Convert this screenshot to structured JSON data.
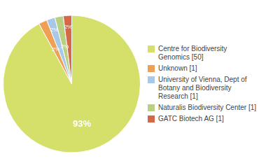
{
  "chart_data": {
    "type": "pie",
    "categories": [
      "Centre for Biodiversity\nGenomics [50]",
      "Unknown [1]",
      "University of Vienna, Dept of\nBotany and Biodiversity\nResearch [1]",
      "Naturalis Biodiversity Center [1]",
      "GATC Biotech AG [1]"
    ],
    "values": [
      93,
      2,
      2,
      2,
      2
    ],
    "value_labels": [
      "93%",
      "2%",
      "2%",
      "2%",
      "2%"
    ],
    "colors": [
      "#d4e06a",
      "#f0a055",
      "#a8c8e8",
      "#b8d080",
      "#d46848"
    ],
    "data_labels": true,
    "legend": "right"
  }
}
